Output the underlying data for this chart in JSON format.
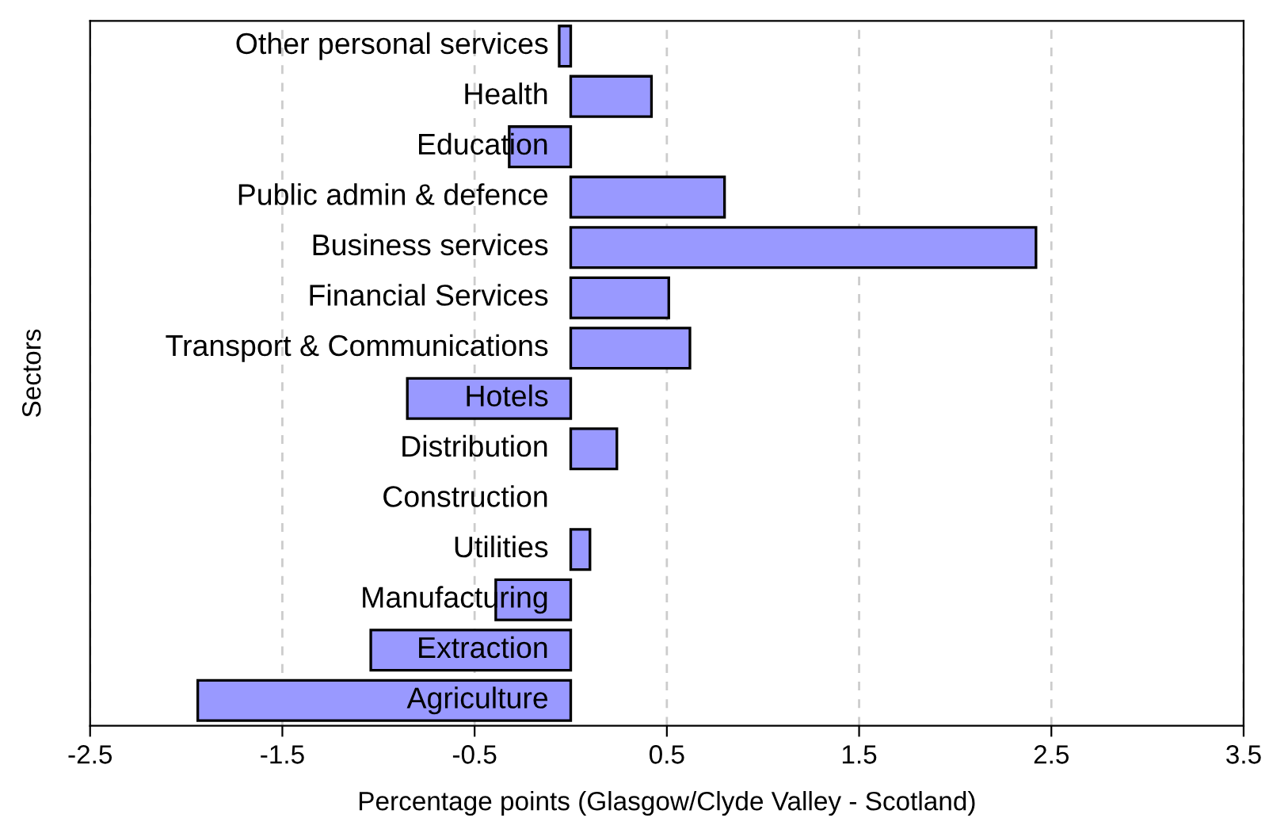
{
  "chart_data": {
    "type": "bar",
    "orientation": "horizontal",
    "xlabel": "Percentage points (Glasgow/Clyde Valley - Scotland)",
    "ylabel": "Sectors",
    "categories": [
      "Other personal services",
      "Health",
      "Education",
      "Public admin & defence",
      "Business services",
      "Financial Services",
      "Transport & Communications",
      "Hotels",
      "Distribution",
      "Construction",
      "Utilities",
      "Manufacturing",
      "Extraction",
      "Agriculture"
    ],
    "values": [
      -0.06,
      0.42,
      -0.32,
      0.8,
      2.42,
      0.51,
      0.62,
      -0.85,
      0.24,
      0,
      0.1,
      -0.39,
      -1.04,
      -1.94
    ],
    "color": "#9999ff",
    "xlim": [
      -2.5,
      3.5
    ],
    "xticks": [
      -2.5,
      -1.5,
      -0.5,
      0.5,
      1.5,
      2.5,
      3.5
    ],
    "grid": "x",
    "legend": false
  }
}
